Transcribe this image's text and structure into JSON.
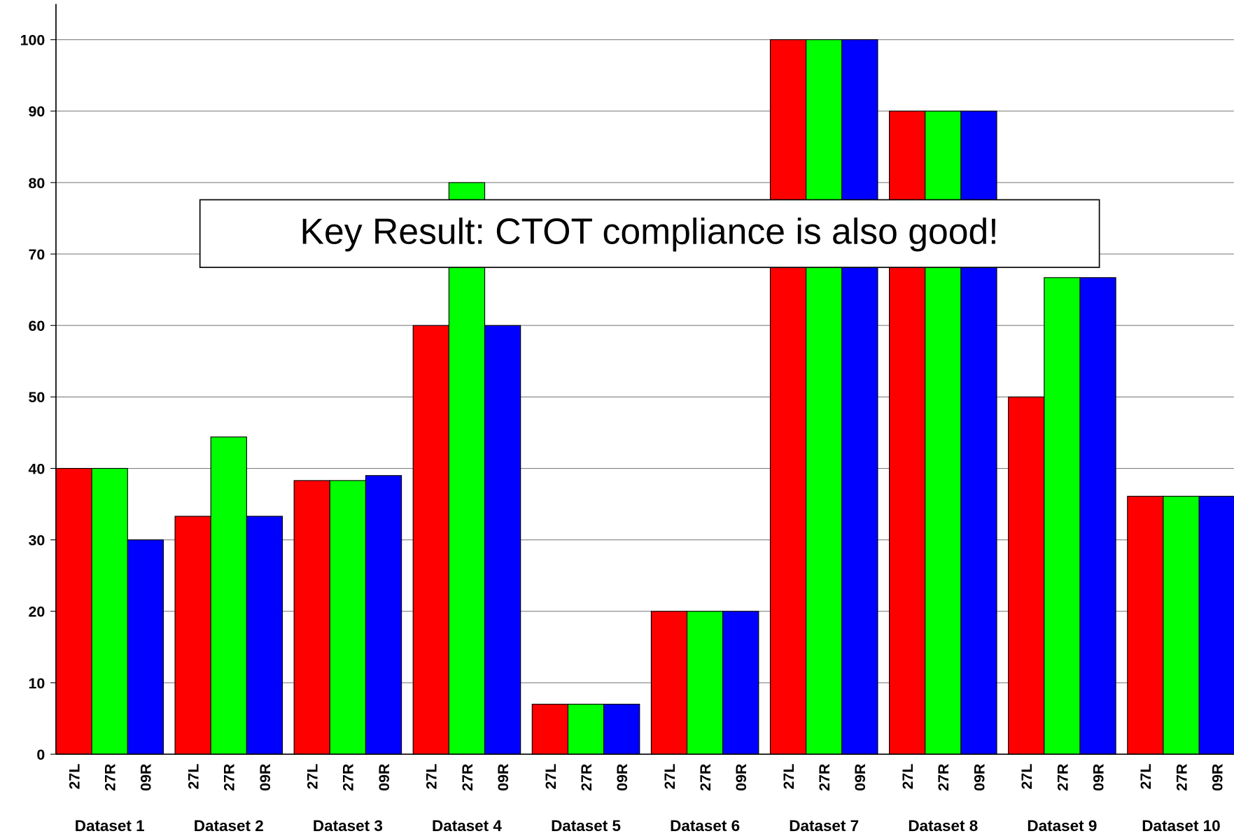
{
  "chart_data": {
    "type": "bar",
    "annotation": "Key Result: CTOT compliance is also good!",
    "categories": [
      "Dataset 1",
      "Dataset 2",
      "Dataset 3",
      "Dataset 4",
      "Dataset 5",
      "Dataset 6",
      "Dataset 7",
      "Dataset 8",
      "Dataset 9",
      "Dataset 10"
    ],
    "series": [
      {
        "name": "27L",
        "color": "#ff0000",
        "values": [
          40,
          33.3,
          38.3,
          60,
          7,
          20,
          100,
          90,
          50,
          36.1
        ]
      },
      {
        "name": "27R",
        "color": "#00ff00",
        "values": [
          40,
          44.4,
          38.3,
          80,
          7,
          20,
          100,
          90,
          66.7,
          36.1
        ]
      },
      {
        "name": "09R",
        "color": "#0000ff",
        "values": [
          30,
          33.3,
          39,
          60,
          7,
          20,
          100,
          90,
          66.7,
          36.1
        ]
      }
    ],
    "ylim": [
      0,
      105
    ],
    "yticks": [
      0,
      10,
      20,
      30,
      40,
      50,
      60,
      70,
      80,
      90,
      100
    ],
    "grid": true
  }
}
